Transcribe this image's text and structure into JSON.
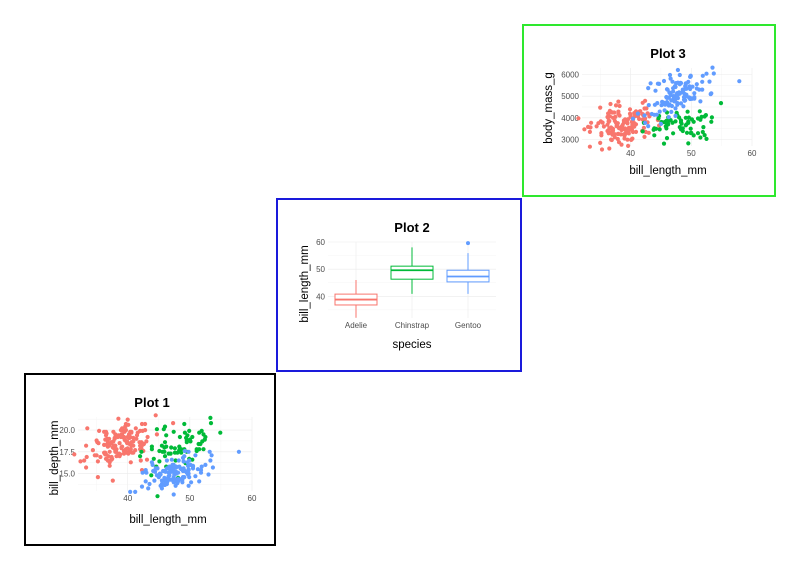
{
  "chart_data": [
    {
      "type": "scatter",
      "title": "Plot 1",
      "xlabel": "bill_length_mm",
      "ylabel": "bill_depth_mm",
      "xlim": [
        32,
        60
      ],
      "ylim": [
        13,
        21.5
      ],
      "x_ticks": [
        "40",
        "50",
        "60"
      ],
      "y_ticks": [
        "15.0",
        "17.5",
        "20.0"
      ],
      "grid": true,
      "colors": [
        "#f8766d",
        "#00ba38",
        "#619cff"
      ],
      "series": []
    },
    {
      "type": "box",
      "title": "Plot 2",
      "xlabel": "species",
      "ylabel": "bill_length_mm",
      "categories": [
        "Adelie",
        "Chinstrap",
        "Gentoo"
      ],
      "ylim": [
        32,
        60
      ],
      "y_ticks": [
        "40",
        "50",
        "60"
      ],
      "grid": true,
      "colors": [
        "#f8766d",
        "#00ba38",
        "#619cff"
      ],
      "boxes": [
        {
          "min": 32.1,
          "q1": 36.8,
          "median": 38.8,
          "q3": 40.8,
          "max": 46.0,
          "outliers": []
        },
        {
          "min": 40.9,
          "q1": 46.3,
          "median": 49.6,
          "q3": 51.1,
          "max": 58.0,
          "outliers": []
        },
        {
          "min": 40.9,
          "q1": 45.3,
          "median": 47.3,
          "q3": 49.6,
          "max": 55.9,
          "outliers": [
            59.6
          ]
        }
      ]
    },
    {
      "type": "scatter",
      "title": "Plot 3",
      "xlabel": "bill_length_mm",
      "ylabel": "body_mass_g",
      "xlim": [
        32,
        60
      ],
      "ylim": [
        2700,
        6300
      ],
      "x_ticks": [
        "40",
        "50",
        "60"
      ],
      "y_ticks": [
        "3000",
        "4000",
        "5000",
        "6000"
      ],
      "grid": true,
      "colors": [
        "#f8766d",
        "#00ba38",
        "#619cff"
      ],
      "series": []
    }
  ]
}
